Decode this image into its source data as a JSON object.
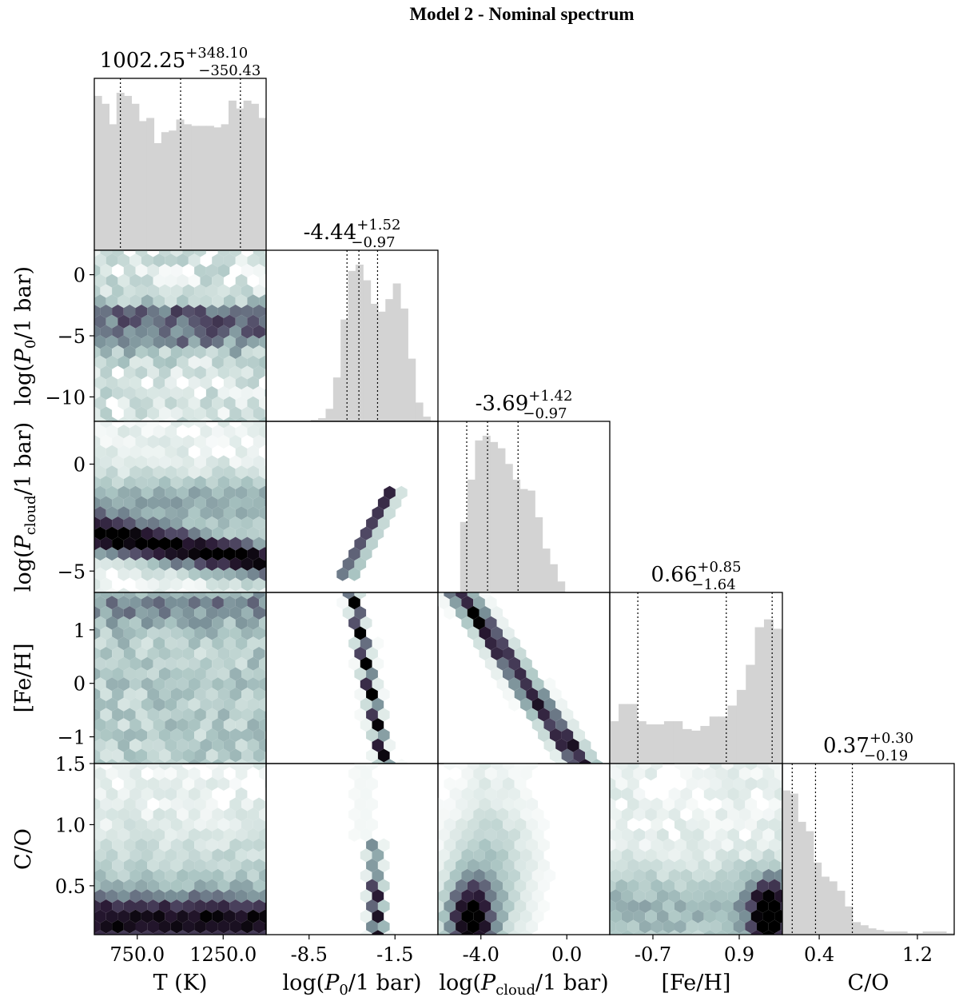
{
  "title": "Model 2 - Nominal spectrum",
  "chart_data": {
    "type": "corner",
    "parameters": [
      {
        "key": "T",
        "label": "T (K)",
        "range": [
          500,
          1500
        ],
        "ticks": [
          750.0,
          1250.0
        ],
        "tick_labels": [
          "750.0",
          "1250.0"
        ],
        "median": 1002.25,
        "plus": 348.1,
        "minus": 350.43,
        "annotation": {
          "main": "1002.25",
          "sup": "+348.10",
          "sub": "−350.43"
        }
      },
      {
        "key": "logP0",
        "label": "log(P0/1 bar)",
        "range": [
          -12,
          2
        ],
        "ticks": [
          -8.5,
          -1.5
        ],
        "tick_labels": [
          "-8.5",
          "-1.5"
        ],
        "y_ticks": [
          0,
          -5,
          -10
        ],
        "y_tick_labels": [
          "0",
          "−5",
          "−10"
        ],
        "median": -4.44,
        "plus": 1.52,
        "minus": 0.97,
        "annotation": {
          "main": "-4.44",
          "sup": "+1.52",
          "sub": "−0.97"
        }
      },
      {
        "key": "logPcloud",
        "label": "log(Pcloud/1 bar)",
        "range": [
          -6,
          2
        ],
        "ticks": [
          -4.0,
          0.0
        ],
        "tick_labels": [
          "-4.0",
          "0.0"
        ],
        "y_ticks": [
          0,
          -5
        ],
        "y_tick_labels": [
          "0",
          "−5"
        ],
        "median": -3.69,
        "plus": 1.42,
        "minus": 0.97,
        "annotation": {
          "main": "-3.69",
          "sup": "+1.42",
          "sub": "−0.97"
        }
      },
      {
        "key": "FeH",
        "label": "[Fe/H]",
        "range": [
          -1.5,
          1.7
        ],
        "ticks": [
          -0.7,
          0.9
        ],
        "tick_labels": [
          "-0.7",
          "0.9"
        ],
        "y_ticks": [
          1,
          0,
          -1
        ],
        "y_tick_labels": [
          "1",
          "0",
          "−1"
        ],
        "median": 0.66,
        "plus": 0.85,
        "minus": 1.64,
        "annotation": {
          "main": "0.66",
          "sup": "+0.85",
          "sub": "−1.64"
        }
      },
      {
        "key": "CO",
        "label": "C/O",
        "range": [
          0.1,
          1.5
        ],
        "ticks": [
          0.4,
          1.2
        ],
        "tick_labels": [
          "0.4",
          "1.2"
        ],
        "y_ticks": [
          1.5,
          1.0,
          0.5
        ],
        "y_tick_labels": [
          "1.5",
          "1.0",
          "0.5"
        ],
        "median": 0.37,
        "plus": 0.3,
        "minus": 0.19,
        "annotation": {
          "main": "0.37",
          "sup": "+0.30",
          "sub": "−0.19"
        }
      }
    ],
    "histograms": {
      "T": [
        0.98,
        0.93,
        0.8,
        1.0,
        0.98,
        0.93,
        0.82,
        0.84,
        0.68,
        0.75,
        0.76,
        0.83,
        0.8,
        0.79,
        0.79,
        0.79,
        0.78,
        0.8,
        0.95,
        0.9,
        0.95,
        0.93,
        0.84
      ],
      "logP0": [
        0.0,
        0.0,
        0.0,
        0.0,
        0.0,
        0.0,
        0.01,
        0.02,
        0.08,
        0.28,
        0.65,
        0.96,
        1.0,
        0.9,
        0.75,
        0.7,
        0.78,
        0.88,
        0.72,
        0.4,
        0.12,
        0.03,
        0.0
      ],
      "logPcloud": [
        0.0,
        0.0,
        0.0,
        0.45,
        0.72,
        0.97,
        1.0,
        0.96,
        0.92,
        0.82,
        0.72,
        0.66,
        0.65,
        0.48,
        0.28,
        0.18,
        0.07,
        0.0,
        0.0,
        0.0,
        0.0,
        0.0,
        0.0
      ],
      "FeH": [
        0.27,
        0.38,
        0.38,
        0.27,
        0.25,
        0.25,
        0.27,
        0.27,
        0.22,
        0.21,
        0.24,
        0.3,
        0.3,
        0.37,
        0.47,
        0.63,
        0.87,
        0.92,
        0.86
      ],
      "CO": [
        0.92,
        0.9,
        0.72,
        0.66,
        0.46,
        0.37,
        0.34,
        0.28,
        0.18,
        0.08,
        0.06,
        0.04,
        0.03,
        0.02,
        0.02,
        0.02,
        0.01,
        0.01,
        0.02,
        0.02,
        0.02,
        0.01
      ]
    },
    "histogram_color": "#d3d3d3",
    "density_colormap": [
      "#ffffff",
      "#d4e3e0",
      "#a8c3c1",
      "#798f97",
      "#514a66",
      "#2a1a35",
      "#000000"
    ],
    "quantile_line_style": "dotted"
  }
}
